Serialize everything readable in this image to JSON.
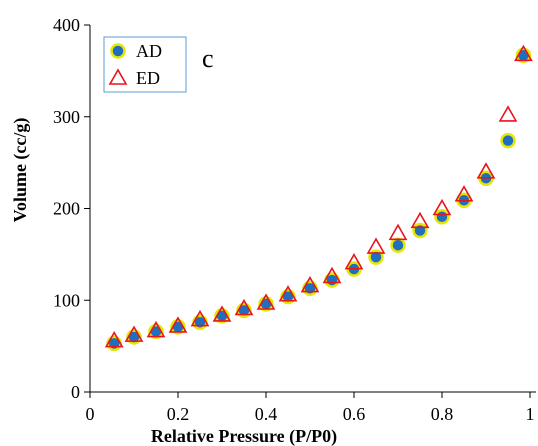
{
  "chart_data": {
    "type": "scatter",
    "panel_label": "c",
    "xlabel": "Relative Pressure (P/P0)",
    "ylabel": "Volume (cc/g)",
    "xlim": [
      0,
      1
    ],
    "ylim": [
      0,
      400
    ],
    "x_ticks": [
      "0",
      "0.2",
      "0.4",
      "0.6",
      "0.8",
      "1"
    ],
    "y_ticks": [
      "0",
      "100",
      "200",
      "300",
      "400"
    ],
    "grid": false,
    "legend_position": "top-left",
    "series": [
      {
        "name": "AD",
        "marker": "circle",
        "fill_color": "#1f6fc0",
        "edge_color": "#e6e600",
        "points": [
          [
            0.055,
            53
          ],
          [
            0.1,
            60
          ],
          [
            0.15,
            66
          ],
          [
            0.2,
            71
          ],
          [
            0.25,
            76
          ],
          [
            0.3,
            83
          ],
          [
            0.35,
            89
          ],
          [
            0.4,
            96
          ],
          [
            0.45,
            104
          ],
          [
            0.5,
            113
          ],
          [
            0.55,
            122
          ],
          [
            0.6,
            134
          ],
          [
            0.65,
            147
          ],
          [
            0.7,
            160
          ],
          [
            0.75,
            176
          ],
          [
            0.8,
            191
          ],
          [
            0.85,
            209
          ],
          [
            0.9,
            233
          ],
          [
            0.95,
            274
          ],
          [
            0.985,
            367
          ]
        ]
      },
      {
        "name": "ED",
        "marker": "triangle",
        "fill_color": "none",
        "edge_color": "#e8141c",
        "points": [
          [
            0.055,
            56
          ],
          [
            0.1,
            62
          ],
          [
            0.15,
            67
          ],
          [
            0.2,
            72
          ],
          [
            0.25,
            79
          ],
          [
            0.3,
            84
          ],
          [
            0.35,
            91
          ],
          [
            0.4,
            97
          ],
          [
            0.45,
            106
          ],
          [
            0.5,
            116
          ],
          [
            0.55,
            126
          ],
          [
            0.6,
            141
          ],
          [
            0.65,
            158
          ],
          [
            0.7,
            173
          ],
          [
            0.75,
            186
          ],
          [
            0.8,
            200
          ],
          [
            0.85,
            215
          ],
          [
            0.9,
            240
          ],
          [
            0.95,
            302
          ],
          [
            0.985,
            368
          ]
        ]
      }
    ]
  }
}
